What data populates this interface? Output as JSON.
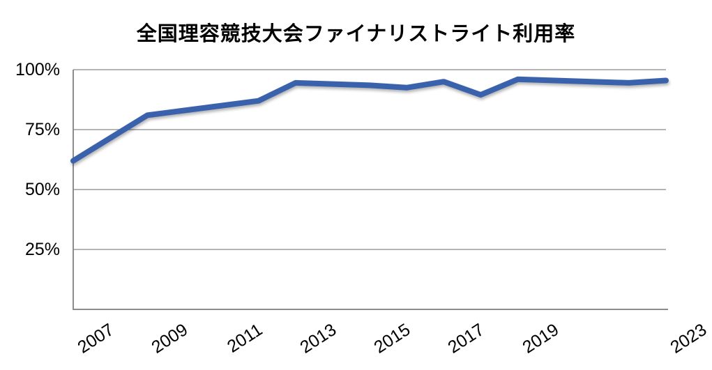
{
  "chart_data": {
    "type": "line",
    "title": "全国理容競技大会ファイナリストライト利用率",
    "x": [
      2007,
      2008,
      2009,
      2010,
      2011,
      2012,
      2013,
      2014,
      2015,
      2016,
      2017,
      2018,
      2019,
      2020,
      2021,
      2022,
      2023
    ],
    "values": [
      62,
      71.5,
      81,
      83,
      85,
      87,
      94.5,
      94,
      93.5,
      92.5,
      95,
      89.5,
      96,
      95.5,
      95,
      94.5,
      95.5
    ],
    "unit": "%",
    "xlabel": "",
    "ylabel": "",
    "ylim": [
      0,
      100
    ],
    "y_ticks": [
      25,
      50,
      75,
      100
    ],
    "y_tick_labels": [
      "25%",
      "50%",
      "75%",
      "100%"
    ],
    "x_tick_labels": [
      "2007",
      "2009",
      "2011",
      "2013",
      "2015",
      "2017",
      "2019",
      "2023"
    ],
    "grid": "horizontal",
    "legend": "none",
    "line_color": "#3A62AC",
    "gridline_color": "#9B9B9B",
    "axis_color": "#8C8C8C",
    "text_color": "#000000",
    "background_color": "#FFFFFF"
  }
}
